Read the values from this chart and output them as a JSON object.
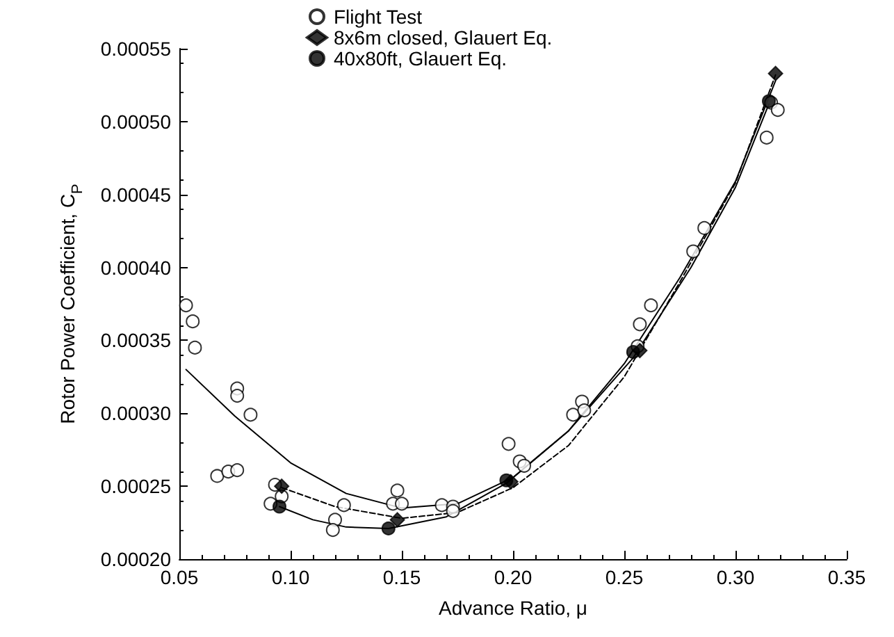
{
  "chart_data": {
    "type": "scatter",
    "xlabel": "Advance Ratio, μ",
    "ylabel": "Rotor Power Coefficient, C$_{P}$",
    "xlim": [
      0.05,
      0.35
    ],
    "xticks": [
      {
        "value": 0.05,
        "label": "0.05"
      },
      {
        "value": 0.1,
        "label": "0.10"
      },
      {
        "value": 0.15,
        "label": "0.15"
      },
      {
        "value": 0.2,
        "label": "0.20"
      },
      {
        "value": 0.25,
        "label": "0.25"
      },
      {
        "value": 0.3,
        "label": "0.30"
      },
      {
        "value": 0.35,
        "label": "0.35"
      }
    ],
    "ylim": [
      0.0002,
      0.00055
    ],
    "yticks": [
      {
        "value": 0.0002,
        "label": "0.00020"
      },
      {
        "value": 0.00025,
        "label": "0.00025"
      },
      {
        "value": 0.0003,
        "label": "0.00030"
      },
      {
        "value": 0.00035,
        "label": "0.00035"
      },
      {
        "value": 0.0004,
        "label": "0.00040"
      },
      {
        "value": 0.00045,
        "label": "0.00045"
      },
      {
        "value": 0.0005,
        "label": "0.00050"
      },
      {
        "value": 0.00055,
        "label": "0.00055"
      }
    ],
    "grid": false,
    "legend": "top",
    "series": [
      {
        "name": "Flight Test",
        "marker": "circle",
        "color": "#ffffff",
        "x": [
          0.053,
          0.056,
          0.057,
          0.076,
          0.076,
          0.082,
          0.067,
          0.072,
          0.076,
          0.091,
          0.093,
          0.096,
          0.12,
          0.119,
          0.124,
          0.148,
          0.146,
          0.15,
          0.168,
          0.173,
          0.173,
          0.198,
          0.203,
          0.205,
          0.227,
          0.231,
          0.232,
          0.257,
          0.262,
          0.256,
          0.281,
          0.286,
          0.316,
          0.319,
          0.314
        ],
        "values": [
          0.000374,
          0.000363,
          0.000345,
          0.000317,
          0.000312,
          0.000299,
          0.000257,
          0.00026,
          0.000261,
          0.000238,
          0.000251,
          0.000243,
          0.000227,
          0.00022,
          0.000237,
          0.000247,
          0.000238,
          0.000238,
          0.000237,
          0.000236,
          0.000233,
          0.000279,
          0.000267,
          0.000264,
          0.000299,
          0.000308,
          0.000302,
          0.000361,
          0.000374,
          0.000346,
          0.000411,
          0.000427,
          0.000513,
          0.000508,
          0.000489
        ]
      },
      {
        "name": "8x6m closed, Glauert Eq.",
        "marker": "diamond",
        "color": "#000000",
        "x": [
          0.096,
          0.148,
          0.199,
          0.257,
          0.318
        ],
        "values": [
          0.00025,
          0.000227,
          0.000253,
          0.000343,
          0.000533
        ]
      },
      {
        "name": "40x80ft, Glauert Eq.",
        "marker": "circle",
        "color": "#000000",
        "x": [
          0.095,
          0.144,
          0.197,
          0.254,
          0.315
        ],
        "values": [
          0.000236,
          0.000221,
          0.000254,
          0.000342,
          0.000514
        ]
      },
      {
        "type": "line",
        "line_style": "solid",
        "color": "#000000",
        "x": [
          0.053,
          0.075,
          0.1,
          0.125,
          0.15,
          0.175,
          0.2,
          0.225,
          0.25,
          0.275,
          0.3,
          0.318
        ],
        "values": [
          0.00033,
          0.000298,
          0.000266,
          0.000245,
          0.000235,
          0.000238,
          0.000256,
          0.000288,
          0.000334,
          0.000393,
          0.000459,
          0.000528
        ]
      },
      {
        "type": "line",
        "line_style": "dashed",
        "color": "#000000",
        "x": [
          0.096,
          0.12,
          0.15,
          0.175,
          0.2,
          0.225,
          0.25,
          0.275,
          0.3,
          0.318
        ],
        "values": [
          0.000249,
          0.000236,
          0.000228,
          0.000232,
          0.000249,
          0.000278,
          0.000325,
          0.00039,
          0.000458,
          0.000532
        ]
      },
      {
        "type": "line",
        "line_style": "solid",
        "color": "#000000",
        "x": [
          0.095,
          0.11,
          0.125,
          0.144,
          0.17,
          0.197,
          0.225,
          0.254,
          0.28,
          0.3,
          0.315
        ],
        "values": [
          0.000236,
          0.000227,
          0.000222,
          0.000221,
          0.000229,
          0.000252,
          0.000288,
          0.000338,
          0.0004,
          0.000455,
          0.000512
        ]
      }
    ]
  }
}
